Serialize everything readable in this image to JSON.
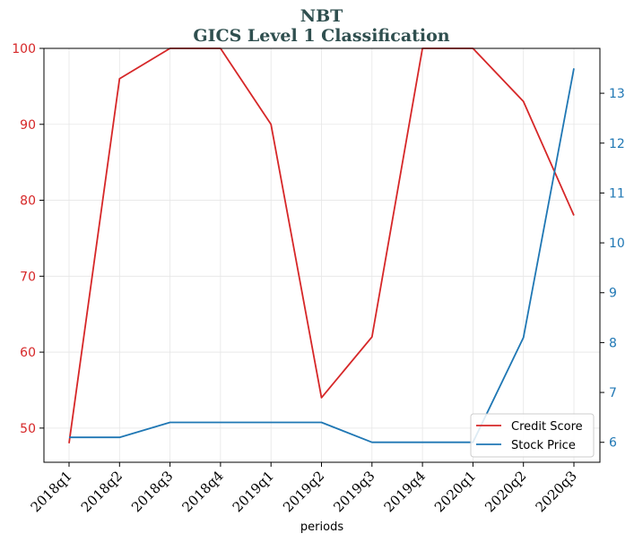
{
  "title": "NBT",
  "subtitle": "GICS Level 1 Classification",
  "chart_data": {
    "type": "line",
    "categories": [
      "2018q1",
      "2018q2",
      "2018q3",
      "2018q4",
      "2019q1",
      "2019q2",
      "2019q3",
      "2019q4",
      "2020q1",
      "2020q2",
      "2020q3"
    ],
    "xlabel": "periods",
    "series": [
      {
        "name": "Credit Score",
        "axis": "left",
        "color": "#d62728",
        "values": [
          48,
          96,
          100,
          100,
          90,
          54,
          62,
          100,
          100,
          93,
          78
        ]
      },
      {
        "name": "Stock Price",
        "axis": "right",
        "color": "#1f77b4",
        "values": [
          6.1,
          6.1,
          6.4,
          6.4,
          6.4,
          6.4,
          6.0,
          6.0,
          6.0,
          8.1,
          13.5
        ]
      }
    ],
    "y_left": {
      "ylim": [
        45.5,
        100
      ],
      "ticks": [
        50,
        60,
        70,
        80,
        90,
        100
      ],
      "color": "#d62728"
    },
    "y_right": {
      "ylim": [
        5.6,
        13.9
      ],
      "ticks": [
        6,
        7,
        8,
        9,
        10,
        11,
        12,
        13
      ],
      "color": "#1f77b4"
    },
    "grid": true,
    "legend": "lower-right"
  }
}
